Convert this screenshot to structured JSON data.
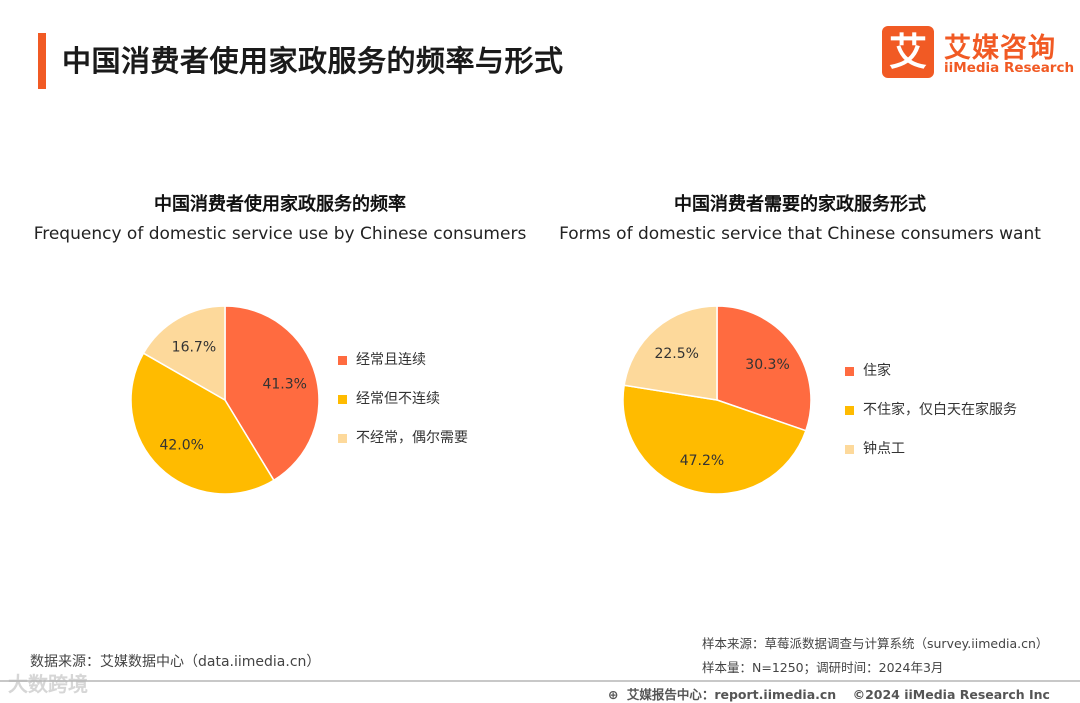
{
  "header": {
    "title": "中国消费者使用家政服务的频率与形式"
  },
  "logo": {
    "mark": "艾",
    "name_cn": "艾媒咨询",
    "name_en": "iiMedia Research"
  },
  "colors": {
    "accent": "#f15a24",
    "slice1": "#ff6b40",
    "slice2": "#ffbb00",
    "slice3": "#fdd99b"
  },
  "chart_data": [
    {
      "type": "pie",
      "title": "中国消费者使用家政服务的频率",
      "subtitle": "Frequency of domestic service use by Chinese consumers",
      "categories": [
        "经常且连续",
        "经常但不连续",
        "不经常，偶尔需要"
      ],
      "values": [
        41.3,
        42.0,
        16.7
      ],
      "labels": [
        "41.3%",
        "42.0%",
        "16.7%"
      ],
      "colors": [
        "#ff6b40",
        "#ffbb00",
        "#fdd99b"
      ],
      "legend_position": "right"
    },
    {
      "type": "pie",
      "title": "中国消费者需要的家政服务形式",
      "subtitle": "Forms of domestic service that Chinese consumers want",
      "categories": [
        "住家",
        "不住家，仅白天在家服务",
        "钟点工"
      ],
      "values": [
        30.3,
        47.2,
        22.5
      ],
      "labels": [
        "30.3%",
        "47.2%",
        "22.5%"
      ],
      "colors": [
        "#ff6b40",
        "#ffbb00",
        "#fdd99b"
      ],
      "legend_position": "right"
    }
  ],
  "footer": {
    "data_source": "数据来源：艾媒数据中心（data.iimedia.cn）",
    "sample_source": "样本来源：草莓派数据调查与计算系统（survey.iimedia.cn）",
    "sample_size": "样本量：N=1250；调研时间：2024年3月",
    "report_center": "艾媒报告中心：report.iimedia.cn",
    "copyright": "©2024  iiMedia Research  Inc",
    "watermark": "大数跨境"
  }
}
